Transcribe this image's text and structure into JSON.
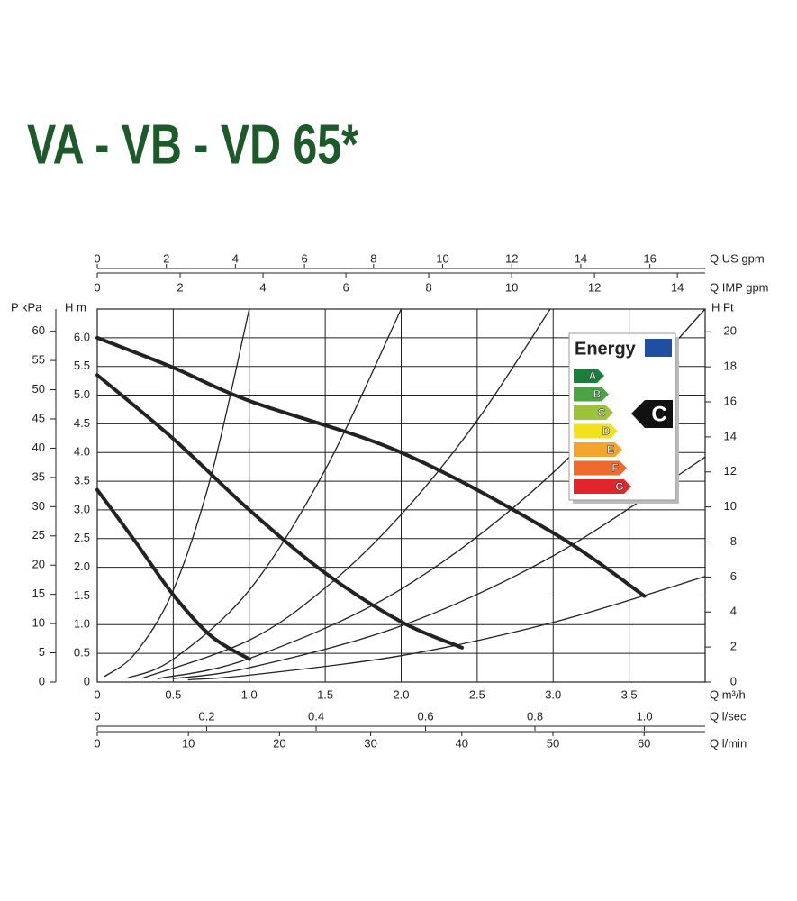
{
  "chart_data": {
    "type": "line",
    "title": "VA - VB - VD 65*",
    "xlabel": "Q m³/h",
    "ylabel": "H m",
    "xlim": [
      0,
      4
    ],
    "xticks": [
      0,
      0.5,
      {
        "value": 1,
        "label": "1.0"
      },
      1.5,
      {
        "value": 2,
        "label": "2.0"
      },
      2.5,
      {
        "value": 3,
        "label": "3.0"
      },
      3.5
    ],
    "ylim": [
      0,
      6.5
    ],
    "yticks": [
      0,
      0.5,
      {
        "value": 1,
        "label": "1.0"
      },
      1.5,
      {
        "value": 2,
        "label": "2.0"
      },
      2.5,
      {
        "value": 3,
        "label": "3.0"
      },
      3.5,
      {
        "value": 4,
        "label": "4.0"
      },
      4.5,
      {
        "value": 5,
        "label": "5.0"
      },
      5.5,
      {
        "value": 6,
        "label": "6.0"
      }
    ],
    "grid": true,
    "extra_axes": [
      {
        "label": "Q US gpm",
        "side": "top",
        "lim": [
          0,
          17.6
        ],
        "ticks": [
          0,
          2,
          4,
          6,
          8,
          10,
          12,
          14,
          16
        ]
      },
      {
        "label": "Q IMP gpm",
        "side": "top",
        "lim": [
          0,
          14.67
        ],
        "ticks": [
          0,
          2,
          4,
          6,
          8,
          10,
          12,
          14
        ]
      },
      {
        "label": "Q l/sec",
        "side": "bottom",
        "lim": [
          0,
          1.111
        ],
        "ticks": [
          0,
          0.2,
          0.4,
          0.6,
          0.8,
          {
            "value": 1,
            "label": "1.0"
          }
        ]
      },
      {
        "label": "Q l/min",
        "side": "bottom",
        "lim": [
          0,
          66.7
        ],
        "ticks": [
          0,
          10,
          20,
          30,
          40,
          50,
          60
        ]
      },
      {
        "label": "P kPa",
        "side": "left",
        "lim": [
          0,
          63.8
        ],
        "ticks": [
          0,
          5,
          10,
          15,
          20,
          25,
          30,
          35,
          40,
          45,
          50,
          55,
          60
        ]
      },
      {
        "label": "H Ft",
        "side": "right",
        "lim": [
          0,
          21.3
        ],
        "ticks": [
          0,
          2,
          4,
          6,
          8,
          10,
          12,
          14,
          16,
          18,
          20
        ]
      }
    ],
    "color": "#222222",
    "pump_curves": [
      {
        "x": [
          0,
          0.5,
          1,
          2,
          3,
          3.6
        ],
        "values": [
          6.0,
          5.48,
          4.9,
          4.0,
          2.6,
          1.5
        ]
      },
      {
        "x": [
          0,
          0.5,
          1,
          1.5,
          2,
          2.4
        ],
        "values": [
          5.35,
          4.24,
          3.0,
          1.9,
          1.05,
          0.6
        ]
      },
      {
        "x": [
          0,
          0.25,
          0.5,
          0.75,
          1.0
        ],
        "values": [
          3.35,
          2.45,
          1.52,
          0.8,
          0.4
        ]
      }
    ],
    "system_curves": [
      {
        "x": [
          0.05,
          0.25,
          0.5,
          0.75,
          1.0
        ],
        "values": [
          0.1,
          0.5,
          1.6,
          3.6,
          6.5
        ]
      },
      {
        "x": [
          0.2,
          0.5,
          1,
          1.5,
          2.0
        ],
        "values": [
          0.07,
          0.4,
          1.6,
          3.7,
          6.5
        ]
      },
      {
        "x": [
          0.3,
          1,
          1.5,
          2,
          2.5,
          2.98
        ],
        "values": [
          0.07,
          0.73,
          1.64,
          2.92,
          4.56,
          6.5
        ]
      },
      {
        "x": [
          0.4,
          1,
          2,
          3,
          4
        ],
        "values": [
          0.06,
          0.41,
          1.62,
          3.65,
          6.5
        ]
      },
      {
        "x": [
          0.5,
          1,
          2,
          3,
          4
        ],
        "values": [
          0.06,
          0.25,
          0.98,
          2.2,
          3.92
        ]
      },
      {
        "x": [
          0.6,
          1,
          2,
          3,
          4
        ],
        "values": [
          0.04,
          0.12,
          0.46,
          1.04,
          1.84
        ]
      }
    ],
    "energy_label": {
      "brand": "Energy",
      "classes": [
        {
          "label": "A",
          "color": "#1a7f3c"
        },
        {
          "label": "B",
          "color": "#4ca345"
        },
        {
          "label": "C",
          "color": "#9cc33b"
        },
        {
          "label": "D",
          "color": "#f2e21c"
        },
        {
          "label": "E",
          "color": "#f2a52a"
        },
        {
          "label": "F",
          "color": "#ec6a2a"
        },
        {
          "label": "G",
          "color": "#e0262a"
        }
      ],
      "rating": "C"
    }
  }
}
